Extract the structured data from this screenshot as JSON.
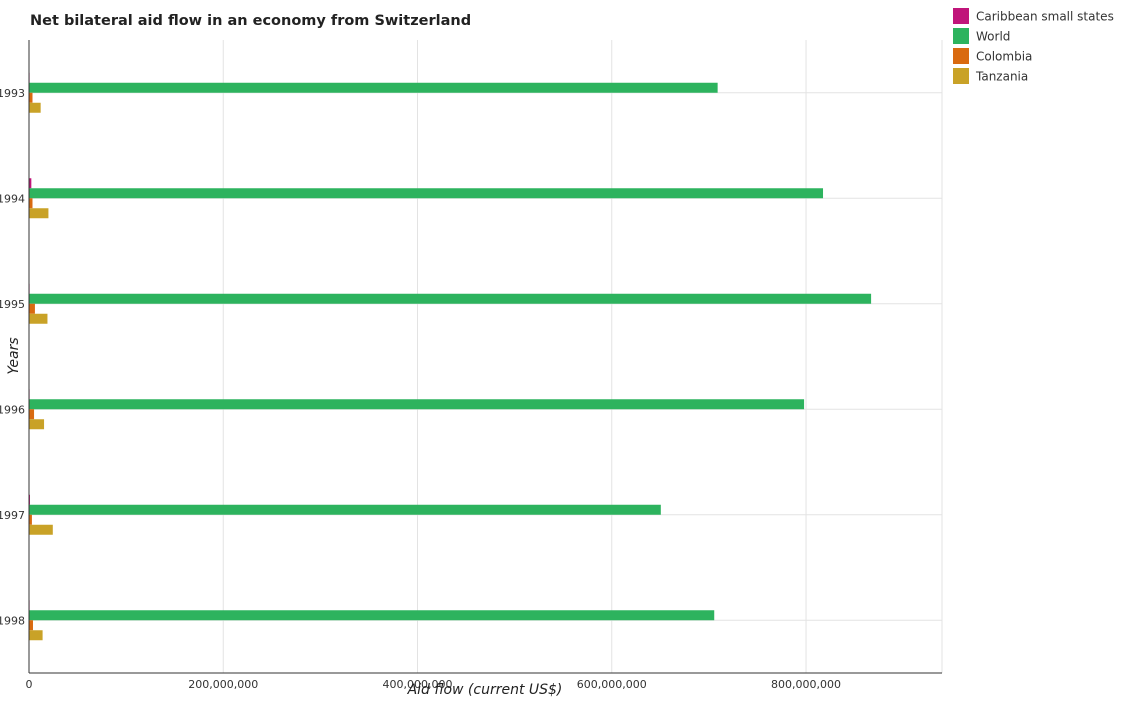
{
  "chart_data": {
    "type": "bar",
    "orientation": "horizontal",
    "title": "Net bilateral aid flow in an economy from Switzerland",
    "xlabel": "Aid flow (current US$)",
    "ylabel": "Years",
    "categories": [
      "1993",
      "1994",
      "1995",
      "1996",
      "1997",
      "1998"
    ],
    "xlim": [
      0,
      940000000
    ],
    "xticks": [
      0,
      200000000,
      400000000,
      600000000,
      800000000
    ],
    "xtick_labels": [
      "0",
      "200,000,000",
      "400,000,000",
      "600,000,000",
      "800,000,000"
    ],
    "grid": true,
    "legend_position": "top-right",
    "series": [
      {
        "name": "Caribbean small states",
        "color": "#c0157a",
        "values": [
          100000,
          2400000,
          100000,
          600000,
          1000000,
          300000
        ]
      },
      {
        "name": "World",
        "color": "#2db35e",
        "values": [
          709000000,
          817500000,
          867000000,
          798000000,
          650500000,
          705500000
        ]
      },
      {
        "name": "Colombia",
        "color": "#d96a10",
        "values": [
          3600000,
          3600000,
          6100000,
          5200000,
          3000000,
          4100000
        ]
      },
      {
        "name": "Tanzania",
        "color": "#c9a227",
        "values": [
          12000000,
          20000000,
          19000000,
          15500000,
          24500000,
          14000000
        ]
      }
    ]
  }
}
